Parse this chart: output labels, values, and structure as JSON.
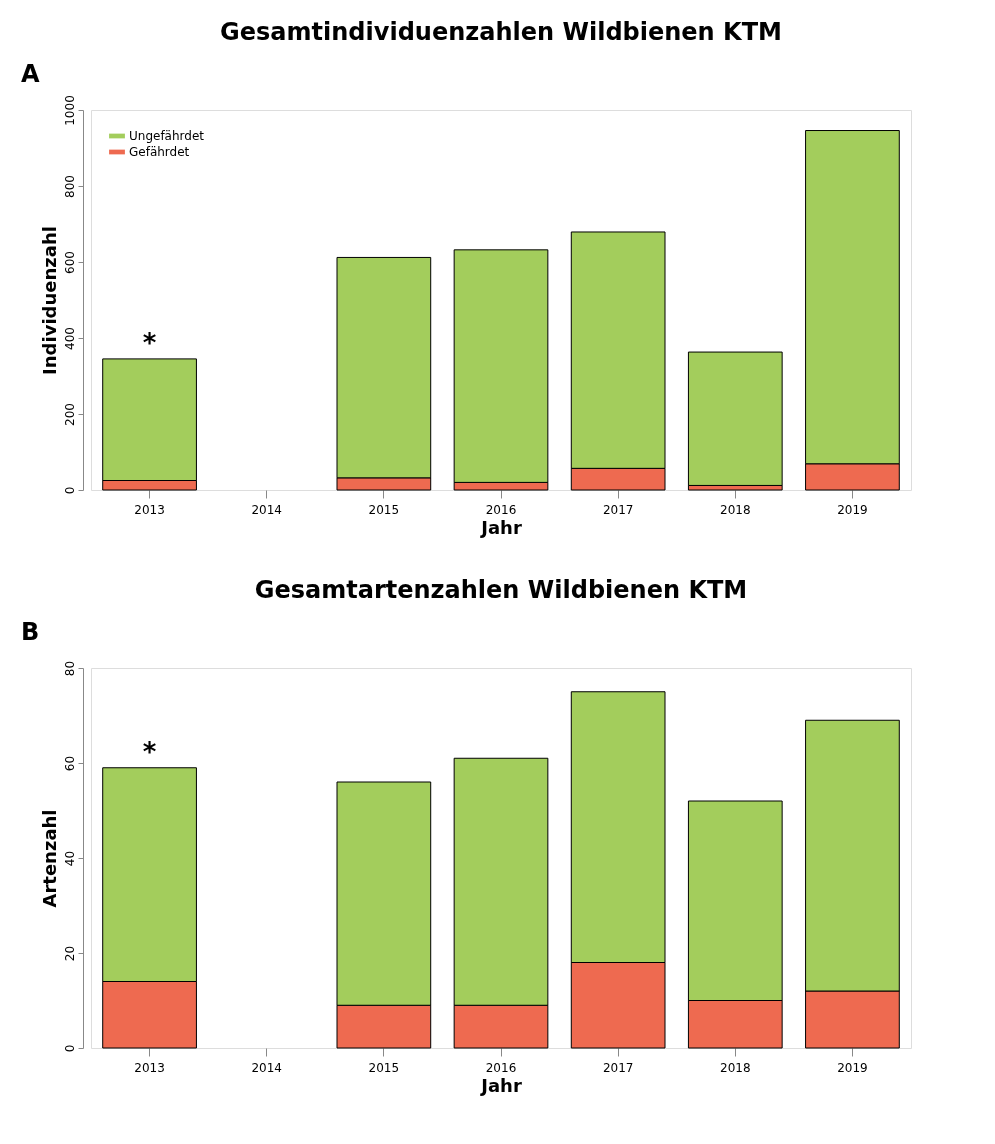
{
  "chart_data": [
    {
      "type": "bar",
      "title": "Gesamtindividuenzahlen Wildbienen KTM",
      "xlabel": "Jahr",
      "ylabel": "Individuenzahl",
      "categories": [
        "2013",
        "2014",
        "2015",
        "2016",
        "2017",
        "2018",
        "2019"
      ],
      "stacked": true,
      "series": [
        {
          "name": "Gefährdet",
          "color": "#ee6a50",
          "values": [
            25,
            null,
            32,
            20,
            57,
            12,
            69
          ]
        },
        {
          "name": "Ungefährdet",
          "color": "#a3cd5c",
          "values": [
            320,
            null,
            580,
            612,
            622,
            351,
            877
          ]
        }
      ],
      "ylim": [
        0,
        1000
      ],
      "yticks": [
        0,
        200,
        400,
        600,
        800,
        1000
      ],
      "grid": false,
      "legend": "top left",
      "annotations": [
        "A",
        "*"
      ]
    },
    {
      "type": "bar",
      "title": "Gesamtartenzahlen Wildbienen KTM",
      "xlabel": "Jahr",
      "ylabel": "Artenzahl",
      "categories": [
        "2013",
        "2014",
        "2015",
        "2016",
        "2017",
        "2018",
        "2019"
      ],
      "stacked": true,
      "series": [
        {
          "name": "Gefährdet",
          "color": "#ee6a50",
          "values": [
            14,
            null,
            9,
            9,
            18,
            10,
            12
          ]
        },
        {
          "name": "Ungefährdet",
          "color": "#a3cd5c",
          "values": [
            45,
            null,
            47,
            52,
            57,
            42,
            57
          ]
        }
      ],
      "ylim": [
        0,
        80
      ],
      "yticks": [
        0,
        20,
        40,
        60,
        80
      ],
      "grid": false,
      "legend": "top left",
      "annotations": [
        "B",
        "*"
      ]
    }
  ]
}
